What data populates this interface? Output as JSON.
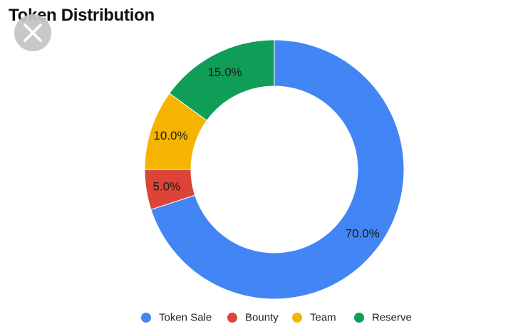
{
  "chart_data": {
    "type": "pie",
    "title": "Token Distribution",
    "donut": true,
    "legend_position": "bottom",
    "slices": [
      {
        "label": "Token Sale",
        "value": 70.0,
        "display": "70.0%",
        "color": "#4285f4"
      },
      {
        "label": "Bounty",
        "value": 5.0,
        "display": "5.0%",
        "color": "#db4437"
      },
      {
        "label": "Team",
        "value": 10.0,
        "display": "10.0%",
        "color": "#f4b400"
      },
      {
        "label": "Reserve",
        "value": 15.0,
        "display": "15.0%",
        "color": "#0f9d58"
      }
    ]
  },
  "overlay": {
    "close_icon": "close-icon"
  }
}
